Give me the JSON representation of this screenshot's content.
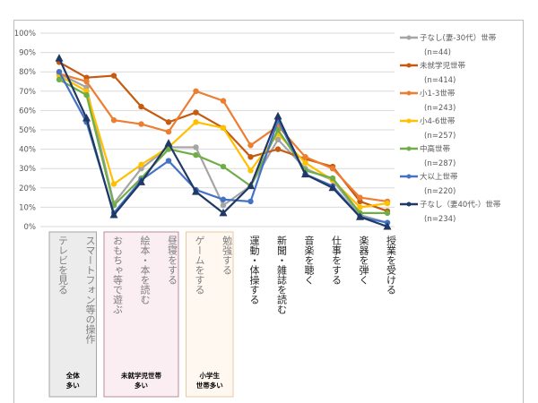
{
  "chart_data": {
    "type": "line",
    "ylim": [
      0,
      100
    ],
    "yticks": [
      "0%",
      "10%",
      "20%",
      "30%",
      "40%",
      "50%",
      "60%",
      "70%",
      "80%",
      "90%",
      "100%"
    ],
    "grid": true,
    "legend": "right",
    "categories": [
      "テレビを見る",
      "スマートフォン等の操作",
      "おもちゃ等で遊ぶ",
      "絵本・本を読む",
      "昼寝をする",
      "ゲームをする",
      "勉強する",
      "運動・体操する",
      "新聞・雑誌を読む",
      "音楽を聴く",
      "仕事をする",
      "楽器を弾く",
      "授業を受ける"
    ],
    "series": [
      {
        "name": "子なし(妻-30代）世帯",
        "n": "(n=44)",
        "color": "#a5a5a5",
        "marker": "circle",
        "values": [
          79,
          72,
          12,
          30,
          41,
          41,
          11,
          21,
          45,
          30,
          24,
          6,
          2
        ]
      },
      {
        "name": "未就学児世帯",
        "n": "(n=414)",
        "color": "#c55a11",
        "marker": "circle",
        "values": [
          85,
          77,
          78,
          62,
          54,
          59,
          51,
          36,
          40,
          35,
          31,
          13,
          8
        ]
      },
      {
        "name": "小1-3世帯",
        "n": "(n=243)",
        "color": "#ed7d31",
        "marker": "circle",
        "values": [
          79,
          75,
          55,
          53,
          49,
          70,
          65,
          42,
          52,
          36,
          30,
          15,
          13
        ]
      },
      {
        "name": "小4-6世帯",
        "n": "(n=257)",
        "color": "#ffc000",
        "marker": "circle",
        "values": [
          78,
          70,
          22,
          32,
          41,
          54,
          51,
          29,
          48,
          33,
          24,
          10,
          12
        ]
      },
      {
        "name": "中高世帯",
        "n": "(n=287)",
        "color": "#70ad47",
        "marker": "circle",
        "values": [
          76,
          68,
          11,
          25,
          40,
          37,
          31,
          21,
          50,
          29,
          25,
          7,
          7
        ]
      },
      {
        "name": "大以上世帯",
        "n": "(n=220)",
        "color": "#4472c4",
        "marker": "circle",
        "values": [
          80,
          54,
          7,
          24,
          34,
          19,
          14,
          13,
          55,
          27,
          21,
          5,
          2
        ]
      },
      {
        "name": "子なし（妻40代-）世帯",
        "n": "(n=234)",
        "color": "#203864",
        "marker": "triangle",
        "values": [
          87,
          56,
          6,
          23,
          43,
          18,
          7,
          21,
          57,
          27,
          20,
          5,
          0
        ]
      }
    ],
    "groups": [
      {
        "label": "全体\n多い",
        "from": 0,
        "to": 1,
        "fill": "#ececec",
        "border": "#a6a6a6"
      },
      {
        "label": "未就学児世帯\n多い",
        "from": 2,
        "to": 4,
        "fill": "#fbeef2",
        "border": "#b88c99"
      },
      {
        "label": "小学生\n世帯多い",
        "from": 5,
        "to": 6,
        "fill": "#fff8f0",
        "border": "#e8c9a0"
      }
    ]
  }
}
